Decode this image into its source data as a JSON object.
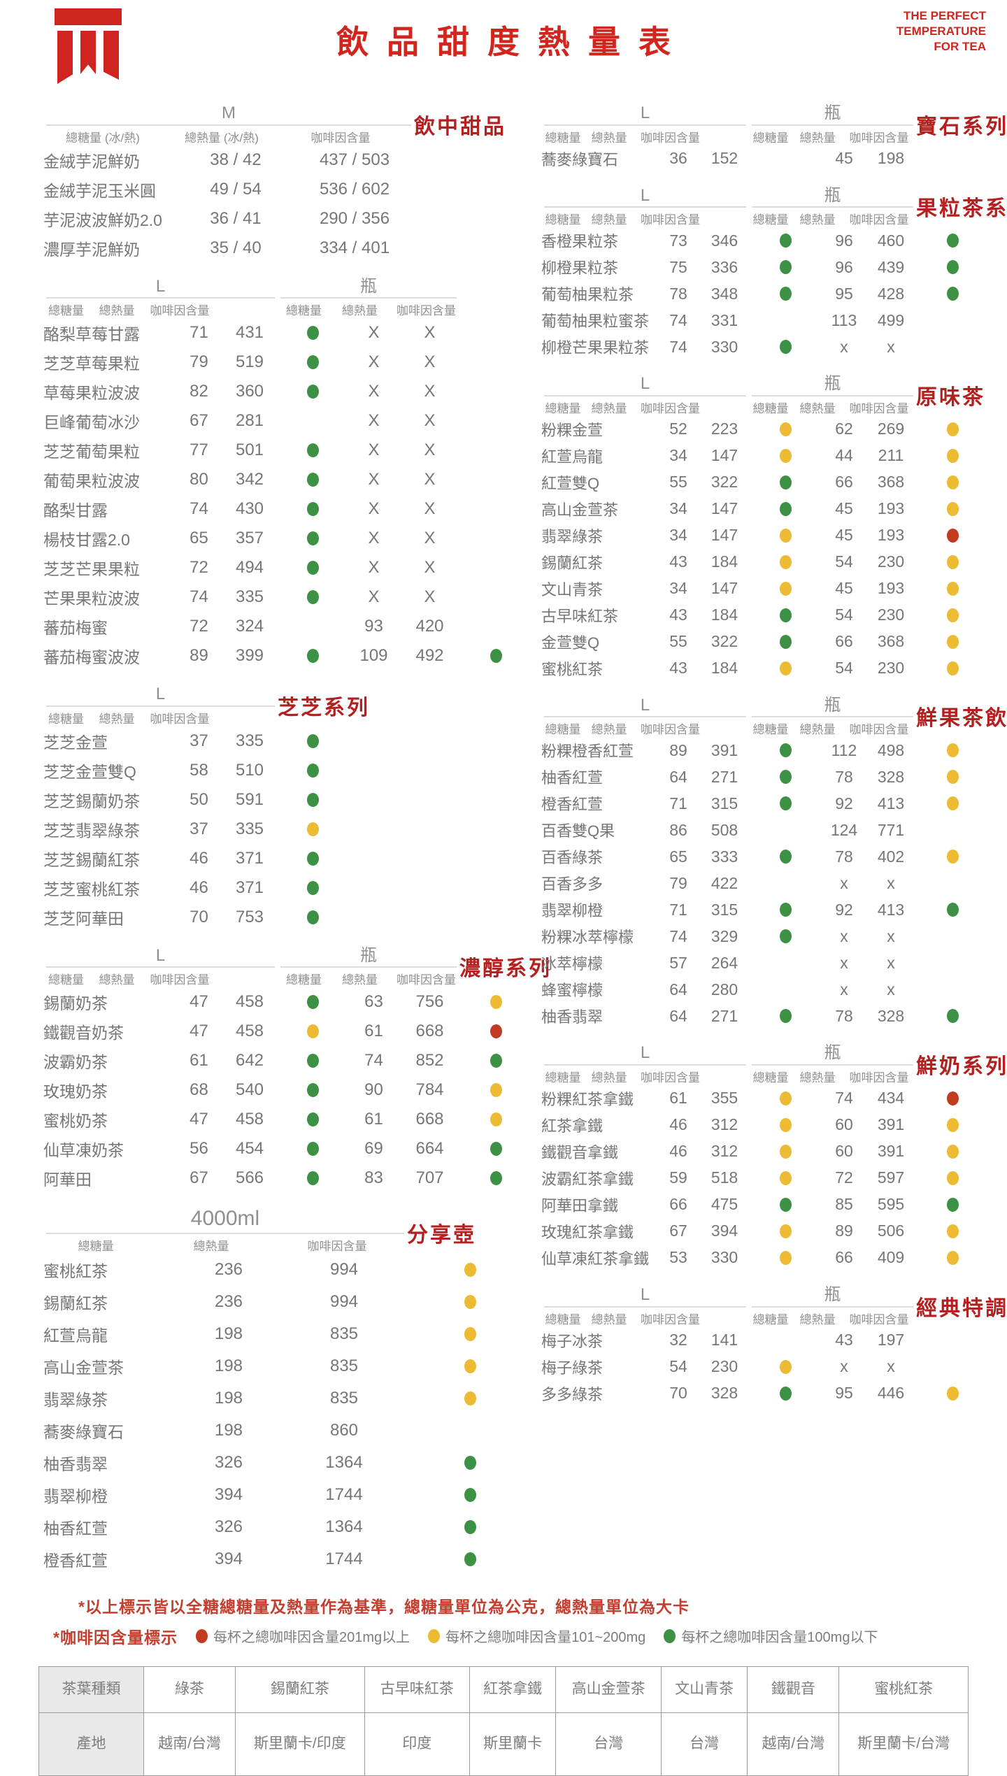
{
  "colors": {
    "accent_red": "#d1251d",
    "section_red": "#b3201f",
    "dot_green": "#3c9144",
    "dot_yellow": "#edba33",
    "dot_red": "#c23a20",
    "text_grey": "#767676"
  },
  "header": {
    "title": "飲品甜度熱量表",
    "tagline_lines": [
      "THE PERFECT",
      "TEMPERATURE",
      "FOR TEA"
    ]
  },
  "sections_left": [
    {
      "title": "飲中甜品",
      "kind": "m",
      "size_label": "M",
      "col_headers": [
        "總糖量 (冰/熱)",
        "總熱量 (冰/熱)",
        "咖啡因含量"
      ],
      "rows": [
        {
          "name": "金絨芋泥鮮奶",
          "vals": [
            "38 / 42",
            "437 / 503",
            ""
          ]
        },
        {
          "name": "金絨芋泥玉米圓",
          "vals": [
            "49 / 54",
            "536 / 602",
            ""
          ]
        },
        {
          "name": "芋泥波波鮮奶2.0",
          "vals": [
            "36 / 41",
            "290 / 356",
            ""
          ]
        },
        {
          "name": "濃厚芋泥鮮奶",
          "vals": [
            "35 / 40",
            "334 / 401",
            ""
          ]
        }
      ]
    },
    {
      "title": "",
      "kind": "double",
      "size_labels": [
        "L",
        "瓶"
      ],
      "col_headers": [
        "總糖量",
        "總熱量",
        "咖啡因含量"
      ],
      "rows": [
        {
          "name": "酪梨草莓甘露",
          "l": [
            "71",
            "431",
            "green"
          ],
          "b": [
            "X",
            "X",
            ""
          ]
        },
        {
          "name": "芝芝草莓果粒",
          "l": [
            "79",
            "519",
            "green"
          ],
          "b": [
            "X",
            "X",
            ""
          ]
        },
        {
          "name": "草莓果粒波波",
          "l": [
            "82",
            "360",
            "green"
          ],
          "b": [
            "X",
            "X",
            ""
          ]
        },
        {
          "name": "巨峰葡萄冰沙",
          "l": [
            "67",
            "281",
            ""
          ],
          "b": [
            "X",
            "X",
            ""
          ]
        },
        {
          "name": "芝芝葡萄果粒",
          "l": [
            "77",
            "501",
            "green"
          ],
          "b": [
            "X",
            "X",
            ""
          ]
        },
        {
          "name": "葡萄果粒波波",
          "l": [
            "80",
            "342",
            "green"
          ],
          "b": [
            "X",
            "X",
            ""
          ]
        },
        {
          "name": "酪梨甘露",
          "l": [
            "74",
            "430",
            "green"
          ],
          "b": [
            "X",
            "X",
            ""
          ]
        },
        {
          "name": "楊枝甘露2.0",
          "l": [
            "65",
            "357",
            "green"
          ],
          "b": [
            "X",
            "X",
            ""
          ]
        },
        {
          "name": "芝芝芒果果粒",
          "l": [
            "72",
            "494",
            "green"
          ],
          "b": [
            "X",
            "X",
            ""
          ]
        },
        {
          "name": "芒果果粒波波",
          "l": [
            "74",
            "335",
            "green"
          ],
          "b": [
            "X",
            "X",
            ""
          ]
        },
        {
          "name": "蕃茄梅蜜",
          "l": [
            "72",
            "324",
            ""
          ],
          "b": [
            "93",
            "420",
            ""
          ]
        },
        {
          "name": "蕃茄梅蜜波波",
          "l": [
            "89",
            "399",
            "green"
          ],
          "b": [
            "109",
            "492",
            "green"
          ]
        }
      ]
    },
    {
      "title": "芝芝系列",
      "kind": "single",
      "size_labels": [
        "L"
      ],
      "col_headers": [
        "總糖量",
        "總熱量",
        "咖啡因含量"
      ],
      "rows": [
        {
          "name": "芝芝金萱",
          "l": [
            "37",
            "335",
            "green"
          ]
        },
        {
          "name": "芝芝金萱雙Q",
          "l": [
            "58",
            "510",
            "green"
          ]
        },
        {
          "name": "芝芝錫蘭奶茶",
          "l": [
            "50",
            "591",
            "green"
          ]
        },
        {
          "name": "芝芝翡翠綠茶",
          "l": [
            "37",
            "335",
            "yellow"
          ]
        },
        {
          "name": "芝芝錫蘭紅茶",
          "l": [
            "46",
            "371",
            "green"
          ]
        },
        {
          "name": "芝芝蜜桃紅茶",
          "l": [
            "46",
            "371",
            "green"
          ]
        },
        {
          "name": "芝芝阿華田",
          "l": [
            "70",
            "753",
            "green"
          ]
        }
      ]
    },
    {
      "title": "濃醇系列",
      "kind": "double",
      "size_labels": [
        "L",
        "瓶"
      ],
      "col_headers": [
        "總糖量",
        "總熱量",
        "咖啡因含量"
      ],
      "rows": [
        {
          "name": "錫蘭奶茶",
          "l": [
            "47",
            "458",
            "green"
          ],
          "b": [
            "63",
            "756",
            "yellow"
          ]
        },
        {
          "name": "鐵觀音奶茶",
          "l": [
            "47",
            "458",
            "yellow"
          ],
          "b": [
            "61",
            "668",
            "red"
          ]
        },
        {
          "name": "波霸奶茶",
          "l": [
            "61",
            "642",
            "green"
          ],
          "b": [
            "74",
            "852",
            "green"
          ]
        },
        {
          "name": "玫瑰奶茶",
          "l": [
            "68",
            "540",
            "green"
          ],
          "b": [
            "90",
            "784",
            "yellow"
          ]
        },
        {
          "name": "蜜桃奶茶",
          "l": [
            "47",
            "458",
            "green"
          ],
          "b": [
            "61",
            "668",
            "yellow"
          ]
        },
        {
          "name": "仙草凍奶茶",
          "l": [
            "56",
            "454",
            "green"
          ],
          "b": [
            "69",
            "664",
            "green"
          ]
        },
        {
          "name": "阿華田",
          "l": [
            "67",
            "566",
            "green"
          ],
          "b": [
            "83",
            "707",
            "green"
          ]
        }
      ]
    },
    {
      "title": "分享壺",
      "kind": "pot",
      "size_label": "4000ml",
      "col_headers": [
        "總糖量",
        "總熱量",
        "咖啡因含量"
      ],
      "rows": [
        {
          "name": "蜜桃紅茶",
          "vals": [
            "236",
            "994",
            "yellow"
          ]
        },
        {
          "name": "錫蘭紅茶",
          "vals": [
            "236",
            "994",
            "yellow"
          ]
        },
        {
          "name": "紅萱烏龍",
          "vals": [
            "198",
            "835",
            "yellow"
          ]
        },
        {
          "name": "高山金萱茶",
          "vals": [
            "198",
            "835",
            "yellow"
          ]
        },
        {
          "name": "翡翠綠茶",
          "vals": [
            "198",
            "835",
            "yellow"
          ]
        },
        {
          "name": "蕎麥綠寶石",
          "vals": [
            "198",
            "860",
            ""
          ]
        },
        {
          "name": "柚香翡翠",
          "vals": [
            "326",
            "1364",
            "green"
          ]
        },
        {
          "name": "翡翠柳橙",
          "vals": [
            "394",
            "1744",
            "green"
          ]
        },
        {
          "name": "柚香紅萱",
          "vals": [
            "326",
            "1364",
            "green"
          ]
        },
        {
          "name": "橙香紅萱",
          "vals": [
            "394",
            "1744",
            "green"
          ]
        }
      ]
    }
  ],
  "sections_right": [
    {
      "title": "寶石系列",
      "kind": "double",
      "size_labels": [
        "L",
        "瓶"
      ],
      "col_headers": [
        "總糖量",
        "總熱量",
        "咖啡因含量"
      ],
      "rows": [
        {
          "name": "蕎麥綠寶石",
          "l": [
            "36",
            "152",
            ""
          ],
          "b": [
            "45",
            "198",
            ""
          ]
        }
      ]
    },
    {
      "title": "果粒茶系列",
      "kind": "double",
      "size_labels": [
        "L",
        "瓶"
      ],
      "col_headers": [
        "總糖量",
        "總熱量",
        "咖啡因含量"
      ],
      "rows": [
        {
          "name": "香橙果粒茶",
          "l": [
            "73",
            "346",
            "green"
          ],
          "b": [
            "96",
            "460",
            "green"
          ]
        },
        {
          "name": "柳橙果粒茶",
          "l": [
            "75",
            "336",
            "green"
          ],
          "b": [
            "96",
            "439",
            "green"
          ]
        },
        {
          "name": "葡萄柚果粒茶",
          "l": [
            "78",
            "348",
            "green"
          ],
          "b": [
            "95",
            "428",
            "green"
          ]
        },
        {
          "name": "葡萄柚果粒蜜茶",
          "l": [
            "74",
            "331",
            ""
          ],
          "b": [
            "113",
            "499",
            ""
          ]
        },
        {
          "name": "柳橙芒果果粒茶",
          "l": [
            "74",
            "330",
            "green"
          ],
          "b": [
            "x",
            "x",
            ""
          ]
        }
      ]
    },
    {
      "title": "原味茶",
      "kind": "double",
      "size_labels": [
        "L",
        "瓶"
      ],
      "col_headers": [
        "總糖量",
        "總熱量",
        "咖啡因含量"
      ],
      "rows": [
        {
          "name": "粉粿金萱",
          "l": [
            "52",
            "223",
            "yellow"
          ],
          "b": [
            "62",
            "269",
            "yellow"
          ]
        },
        {
          "name": "紅萱烏龍",
          "l": [
            "34",
            "147",
            "yellow"
          ],
          "b": [
            "44",
            "211",
            "yellow"
          ]
        },
        {
          "name": "紅萱雙Q",
          "l": [
            "55",
            "322",
            "green"
          ],
          "b": [
            "66",
            "368",
            "yellow"
          ]
        },
        {
          "name": "高山金萱茶",
          "l": [
            "34",
            "147",
            "green"
          ],
          "b": [
            "45",
            "193",
            "yellow"
          ]
        },
        {
          "name": "翡翠綠茶",
          "l": [
            "34",
            "147",
            "yellow"
          ],
          "b": [
            "45",
            "193",
            "red"
          ]
        },
        {
          "name": "錫蘭紅茶",
          "l": [
            "43",
            "184",
            "yellow"
          ],
          "b": [
            "54",
            "230",
            "yellow"
          ]
        },
        {
          "name": "文山青茶",
          "l": [
            "34",
            "147",
            "yellow"
          ],
          "b": [
            "45",
            "193",
            "yellow"
          ]
        },
        {
          "name": "古早味紅茶",
          "l": [
            "43",
            "184",
            "green"
          ],
          "b": [
            "54",
            "230",
            "yellow"
          ]
        },
        {
          "name": "金萱雙Q",
          "l": [
            "55",
            "322",
            "green"
          ],
          "b": [
            "66",
            "368",
            "yellow"
          ]
        },
        {
          "name": "蜜桃紅茶",
          "l": [
            "43",
            "184",
            "yellow"
          ],
          "b": [
            "54",
            "230",
            "yellow"
          ]
        }
      ]
    },
    {
      "title": "鮮果茶飲",
      "kind": "double",
      "size_labels": [
        "L",
        "瓶"
      ],
      "col_headers": [
        "總糖量",
        "總熱量",
        "咖啡因含量"
      ],
      "rows": [
        {
          "name": "粉粿橙香紅萱",
          "l": [
            "89",
            "391",
            "green"
          ],
          "b": [
            "112",
            "498",
            "yellow"
          ]
        },
        {
          "name": "柚香紅萱",
          "l": [
            "64",
            "271",
            "green"
          ],
          "b": [
            "78",
            "328",
            "yellow"
          ]
        },
        {
          "name": "橙香紅萱",
          "l": [
            "71",
            "315",
            "green"
          ],
          "b": [
            "92",
            "413",
            "yellow"
          ]
        },
        {
          "name": "百香雙Q果",
          "l": [
            "86",
            "508",
            ""
          ],
          "b": [
            "124",
            "771",
            ""
          ]
        },
        {
          "name": "百香綠茶",
          "l": [
            "65",
            "333",
            "green"
          ],
          "b": [
            "78",
            "402",
            "yellow"
          ]
        },
        {
          "name": "百香多多",
          "l": [
            "79",
            "422",
            ""
          ],
          "b": [
            "x",
            "x",
            ""
          ]
        },
        {
          "name": "翡翠柳橙",
          "l": [
            "71",
            "315",
            "green"
          ],
          "b": [
            "92",
            "413",
            "green"
          ]
        },
        {
          "name": "粉粿冰萃檸檬",
          "l": [
            "74",
            "329",
            "green"
          ],
          "b": [
            "x",
            "x",
            ""
          ]
        },
        {
          "name": "冰萃檸檬",
          "l": [
            "57",
            "264",
            ""
          ],
          "b": [
            "x",
            "x",
            ""
          ]
        },
        {
          "name": "蜂蜜檸檬",
          "l": [
            "64",
            "280",
            ""
          ],
          "b": [
            "x",
            "x",
            ""
          ]
        },
        {
          "name": "柚香翡翠",
          "l": [
            "64",
            "271",
            "green"
          ],
          "b": [
            "78",
            "328",
            "green"
          ]
        }
      ]
    },
    {
      "title": "鮮奶系列",
      "kind": "double",
      "size_labels": [
        "L",
        "瓶"
      ],
      "col_headers": [
        "總糖量",
        "總熱量",
        "咖啡因含量"
      ],
      "rows": [
        {
          "name": "粉粿紅茶拿鐵",
          "l": [
            "61",
            "355",
            "yellow"
          ],
          "b": [
            "74",
            "434",
            "red"
          ]
        },
        {
          "name": "紅茶拿鐵",
          "l": [
            "46",
            "312",
            "yellow"
          ],
          "b": [
            "60",
            "391",
            "yellow"
          ]
        },
        {
          "name": "鐵觀音拿鐵",
          "l": [
            "46",
            "312",
            "yellow"
          ],
          "b": [
            "60",
            "391",
            "yellow"
          ]
        },
        {
          "name": "波霸紅茶拿鐵",
          "l": [
            "59",
            "518",
            "yellow"
          ],
          "b": [
            "72",
            "597",
            "yellow"
          ]
        },
        {
          "name": "阿華田拿鐵",
          "l": [
            "66",
            "475",
            "green"
          ],
          "b": [
            "85",
            "595",
            "green"
          ]
        },
        {
          "name": "玫瑰紅茶拿鐵",
          "l": [
            "67",
            "394",
            "yellow"
          ],
          "b": [
            "89",
            "506",
            "yellow"
          ]
        },
        {
          "name": "仙草凍紅茶拿鐵",
          "l": [
            "53",
            "330",
            "yellow"
          ],
          "b": [
            "66",
            "409",
            "yellow"
          ]
        }
      ]
    },
    {
      "title": "經典特調",
      "kind": "double",
      "size_labels": [
        "L",
        "瓶"
      ],
      "col_headers": [
        "總糖量",
        "總熱量",
        "咖啡因含量"
      ],
      "rows": [
        {
          "name": "梅子冰茶",
          "l": [
            "32",
            "141",
            ""
          ],
          "b": [
            "43",
            "197",
            ""
          ]
        },
        {
          "name": "梅子綠茶",
          "l": [
            "54",
            "230",
            "yellow"
          ],
          "b": [
            "x",
            "x",
            ""
          ]
        },
        {
          "name": "多多綠茶",
          "l": [
            "70",
            "328",
            "green"
          ],
          "b": [
            "95",
            "446",
            "yellow"
          ]
        }
      ]
    }
  ],
  "footnotes": {
    "note1": "*以上標示皆以全糖總糖量及熱量作為基準，總糖量單位為公克，總熱量單位為大卡",
    "note2_label": "*咖啡因含量標示",
    "legend": [
      {
        "color": "red",
        "label": "每杯之總咖啡因含量201mg以上"
      },
      {
        "color": "yellow",
        "label": "每杯之總咖啡因含量101~200mg"
      },
      {
        "color": "green",
        "label": "每杯之總咖啡因含量100mg以下"
      }
    ]
  },
  "origin_table": {
    "row1_label": "茶葉種類",
    "row2_label": "產地",
    "types": [
      "綠茶",
      "錫蘭紅茶",
      "古早味紅茶",
      "紅茶拿鐵",
      "高山金萱茶",
      "文山青茶",
      "鐵觀音",
      "蜜桃紅茶"
    ],
    "origins": [
      "越南/台灣",
      "斯里蘭卡/印度",
      "印度",
      "斯里蘭卡",
      "台灣",
      "台灣",
      "越南/台灣",
      "斯里蘭卡/台灣"
    ]
  }
}
